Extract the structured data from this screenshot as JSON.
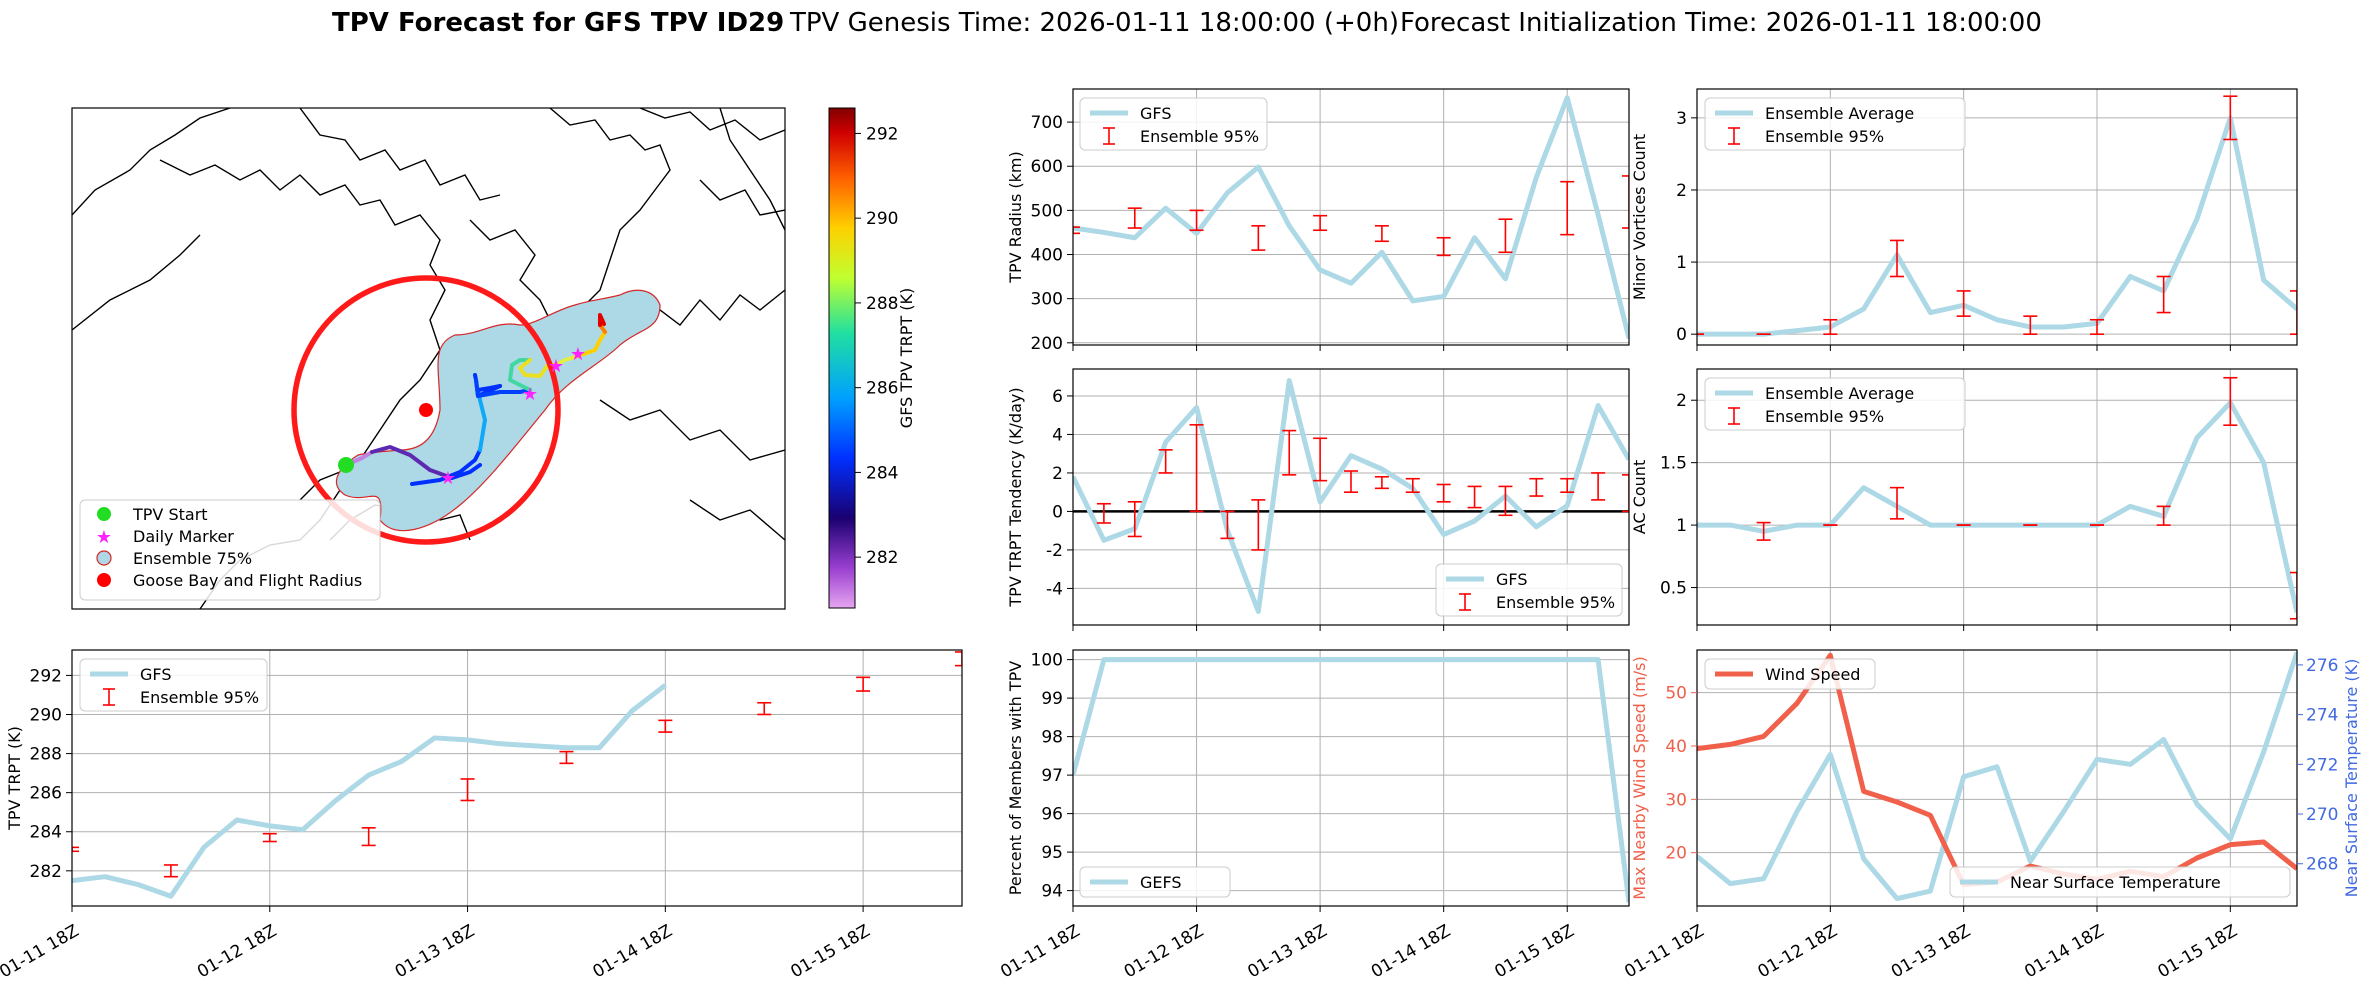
{
  "header": {
    "title_bold": "TPV Forecast for GFS TPV ID29",
    "genesis": "TPV Genesis Time: 2026-01-11 18:00:00 (+0h)",
    "init": "Forecast Initialization Time: 2026-01-11 18:00:00"
  },
  "colors": {
    "gfs": "#add8e6",
    "ens": "#ff0000",
    "wind": "#f0604a",
    "temp_axis": "#4169e1",
    "wind_axis": "#f0604a"
  },
  "time_ticks": [
    "01-11 18Z",
    "01-12 18Z",
    "01-13 18Z",
    "01-14 18Z",
    "01-15 18Z"
  ],
  "map": {
    "colorbar_label": "GFS TPV TRPT (K)",
    "colorbar_ticks": [
      282,
      284,
      286,
      288,
      290,
      292
    ],
    "colorbar_range": [
      280.8,
      292.6
    ],
    "legend": [
      {
        "label": "TPV Start",
        "marker": "circle",
        "color": "#22dd22"
      },
      {
        "label": "Daily Marker",
        "marker": "star",
        "color": "#ff22ff"
      },
      {
        "label": "Ensemble 75%",
        "marker": "circle",
        "color": "#add8e6"
      },
      {
        "label": "Goose Bay and Flight Radius",
        "marker": "circle",
        "color": "#ff0000"
      }
    ]
  },
  "chart_data": [
    {
      "id": "radius",
      "type": "line",
      "ylabel": "TPV Radius (km)",
      "ylim": [
        195,
        775
      ],
      "yticks": [
        200,
        300,
        400,
        500,
        600,
        700
      ],
      "grid": true,
      "legend_loc": "upper-left",
      "series": [
        {
          "name": "GFS",
          "values": [
            460,
            450,
            438,
            505,
            448,
            540,
            598,
            465,
            365,
            335,
            405,
            295,
            305,
            438,
            345,
            575,
            755,
            490,
            210
          ]
        }
      ],
      "errorbars": {
        "name": "Ensemble 95%",
        "x": [
          0,
          2,
          4,
          6,
          8,
          10,
          12,
          14,
          16,
          18
        ],
        "low": [
          448,
          460,
          455,
          410,
          455,
          430,
          398,
          405,
          445,
          460
        ],
        "high": [
          462,
          505,
          500,
          465,
          488,
          465,
          438,
          480,
          565,
          578
        ]
      }
    },
    {
      "id": "minor",
      "type": "line",
      "ylabel": "Minor Vortices Count",
      "ylim": [
        -0.15,
        3.4
      ],
      "yticks": [
        0,
        1,
        2,
        3
      ],
      "grid": true,
      "legend_loc": "upper-left",
      "series": [
        {
          "name": "Ensemble Average",
          "values": [
            0,
            0,
            0,
            0.05,
            0.1,
            0.35,
            1.1,
            0.3,
            0.4,
            0.2,
            0.1,
            0.1,
            0.15,
            0.8,
            0.6,
            1.6,
            3.0,
            0.75,
            0.35
          ]
        }
      ],
      "errorbars": {
        "name": "Ensemble 95%",
        "x": [
          0,
          2,
          4,
          6,
          8,
          10,
          12,
          14,
          16,
          18
        ],
        "low": [
          0,
          0,
          0,
          0.8,
          0.25,
          0,
          0,
          0.3,
          2.7,
          0
        ],
        "high": [
          0,
          0,
          0.2,
          1.3,
          0.6,
          0.25,
          0.2,
          0.8,
          3.3,
          0.6
        ]
      }
    },
    {
      "id": "tendency",
      "type": "line",
      "ylabel": "TPV TRPT Tendency (K/day)",
      "ylim": [
        -5.9,
        7.4
      ],
      "yticks": [
        -4,
        -2,
        0,
        2,
        4,
        6
      ],
      "grid": true,
      "legend_loc": "lower-right",
      "zero_line": true,
      "series": [
        {
          "name": "GFS",
          "values": [
            1.8,
            -1.5,
            -0.9,
            3.6,
            5.4,
            -1.0,
            -5.2,
            6.8,
            0.5,
            2.9,
            2.2,
            1.2,
            -1.2,
            -0.5,
            0.8,
            -0.8,
            0.3,
            5.5,
            2.7
          ]
        }
      ],
      "errorbars": {
        "name": "Ensemble 95%",
        "x": [
          1,
          2,
          3,
          4,
          5,
          6,
          7,
          8,
          9,
          10,
          11,
          12,
          13,
          14,
          15,
          16,
          17,
          18
        ],
        "low": [
          -0.6,
          -1.3,
          2.0,
          0.0,
          -1.4,
          -2.0,
          1.9,
          1.6,
          1.0,
          1.2,
          1.0,
          0.5,
          0.2,
          -0.2,
          0.8,
          1.0,
          0.6,
          0.0
        ],
        "high": [
          0.4,
          0.5,
          3.2,
          4.5,
          0.0,
          0.6,
          4.2,
          3.8,
          2.1,
          1.8,
          1.7,
          1.4,
          1.3,
          1.3,
          1.7,
          1.7,
          2.0,
          1.9
        ]
      }
    },
    {
      "id": "ac",
      "type": "line",
      "ylabel": "AC Count",
      "ylim": [
        0.2,
        2.25
      ],
      "yticks": [
        0.5,
        1.0,
        1.5,
        2.0
      ],
      "grid": true,
      "legend_loc": "upper-left",
      "series": [
        {
          "name": "Ensemble Average",
          "values": [
            1.0,
            1.0,
            0.95,
            1.0,
            1.0,
            1.3,
            1.15,
            1.0,
            1.0,
            1.0,
            1.0,
            1.0,
            1.0,
            1.15,
            1.07,
            1.7,
            1.98,
            1.5,
            0.3
          ]
        }
      ],
      "errorbars": {
        "name": "Ensemble 95%",
        "x": [
          2,
          4,
          6,
          8,
          10,
          12,
          14,
          16,
          18
        ],
        "low": [
          0.88,
          1.0,
          1.05,
          1.0,
          1.0,
          1.0,
          1.0,
          1.8,
          0.25
        ],
        "high": [
          1.02,
          1.0,
          1.3,
          1.0,
          1.0,
          1.0,
          1.15,
          2.18,
          0.62
        ]
      }
    },
    {
      "id": "trpt",
      "type": "line",
      "ylabel": "TPV TRPT (K)",
      "ylim": [
        280.2,
        293.3
      ],
      "yticks": [
        282,
        284,
        286,
        288,
        290,
        292
      ],
      "grid": true,
      "legend_loc": "upper-left",
      "series": [
        {
          "name": "GFS",
          "values": [
            281.5,
            281.7,
            281.3,
            280.7,
            283.2,
            284.6,
            284.3,
            284.1,
            285.6,
            286.9,
            287.6,
            288.8,
            288.7,
            288.5,
            288.4,
            288.3,
            288.3,
            290.2,
            291.5
          ]
        }
      ],
      "errorbars": {
        "name": "Ensemble 95%",
        "x": [
          0,
          3,
          6,
          9,
          12,
          15,
          18,
          21,
          24,
          27
        ],
        "low": [
          283.0,
          281.7,
          283.5,
          283.3,
          285.6,
          287.5,
          289.1,
          290.0,
          291.2,
          292.5
        ],
        "high": [
          283.2,
          282.3,
          283.9,
          284.2,
          286.7,
          288.1,
          289.7,
          290.6,
          291.9,
          293.2
        ]
      }
    },
    {
      "id": "percent",
      "type": "line",
      "ylabel": "Percent of Members with TPV",
      "ylim": [
        93.6,
        100.25
      ],
      "yticks": [
        94,
        95,
        96,
        97,
        98,
        99,
        100
      ],
      "grid": true,
      "legend_loc": "lower-left",
      "series": [
        {
          "name": "GEFS",
          "values": [
            97,
            100,
            100,
            100,
            100,
            100,
            100,
            100,
            100,
            100,
            100,
            100,
            100,
            100,
            100,
            100,
            100,
            100,
            93.7
          ]
        }
      ]
    },
    {
      "id": "wind",
      "type": "line",
      "ylabel": "Max Nearby Wind Speed (m/s)",
      "ylim": [
        10,
        58
      ],
      "yticks": [
        20,
        30,
        40,
        50
      ],
      "grid": true,
      "legend_loc": "upper-left",
      "series": [
        {
          "name": "Wind Speed",
          "values": [
            39.5,
            40.3,
            41.8,
            48.0,
            57.0,
            31.5,
            29.5,
            27.0,
            14.0,
            14.5,
            17.5,
            16.0,
            15.0,
            16.5,
            15.5,
            19.0,
            21.5,
            22.0,
            17.0
          ]
        }
      ],
      "secondary": {
        "ylabel": "Near Surface Temperature (K)",
        "ylim": [
          266.3,
          276.6
        ],
        "yticks": [
          268,
          270,
          272,
          274,
          276
        ],
        "series": [
          {
            "name": "Near Surface Temperature",
            "values": [
              268.3,
              267.2,
              267.4,
              270.1,
              272.4,
              268.2,
              266.6,
              266.9,
              271.5,
              271.9,
              268.1,
              270.1,
              272.2,
              272.0,
              273.0,
              270.4,
              269.0,
              272.5,
              276.5
            ]
          }
        ]
      }
    }
  ]
}
